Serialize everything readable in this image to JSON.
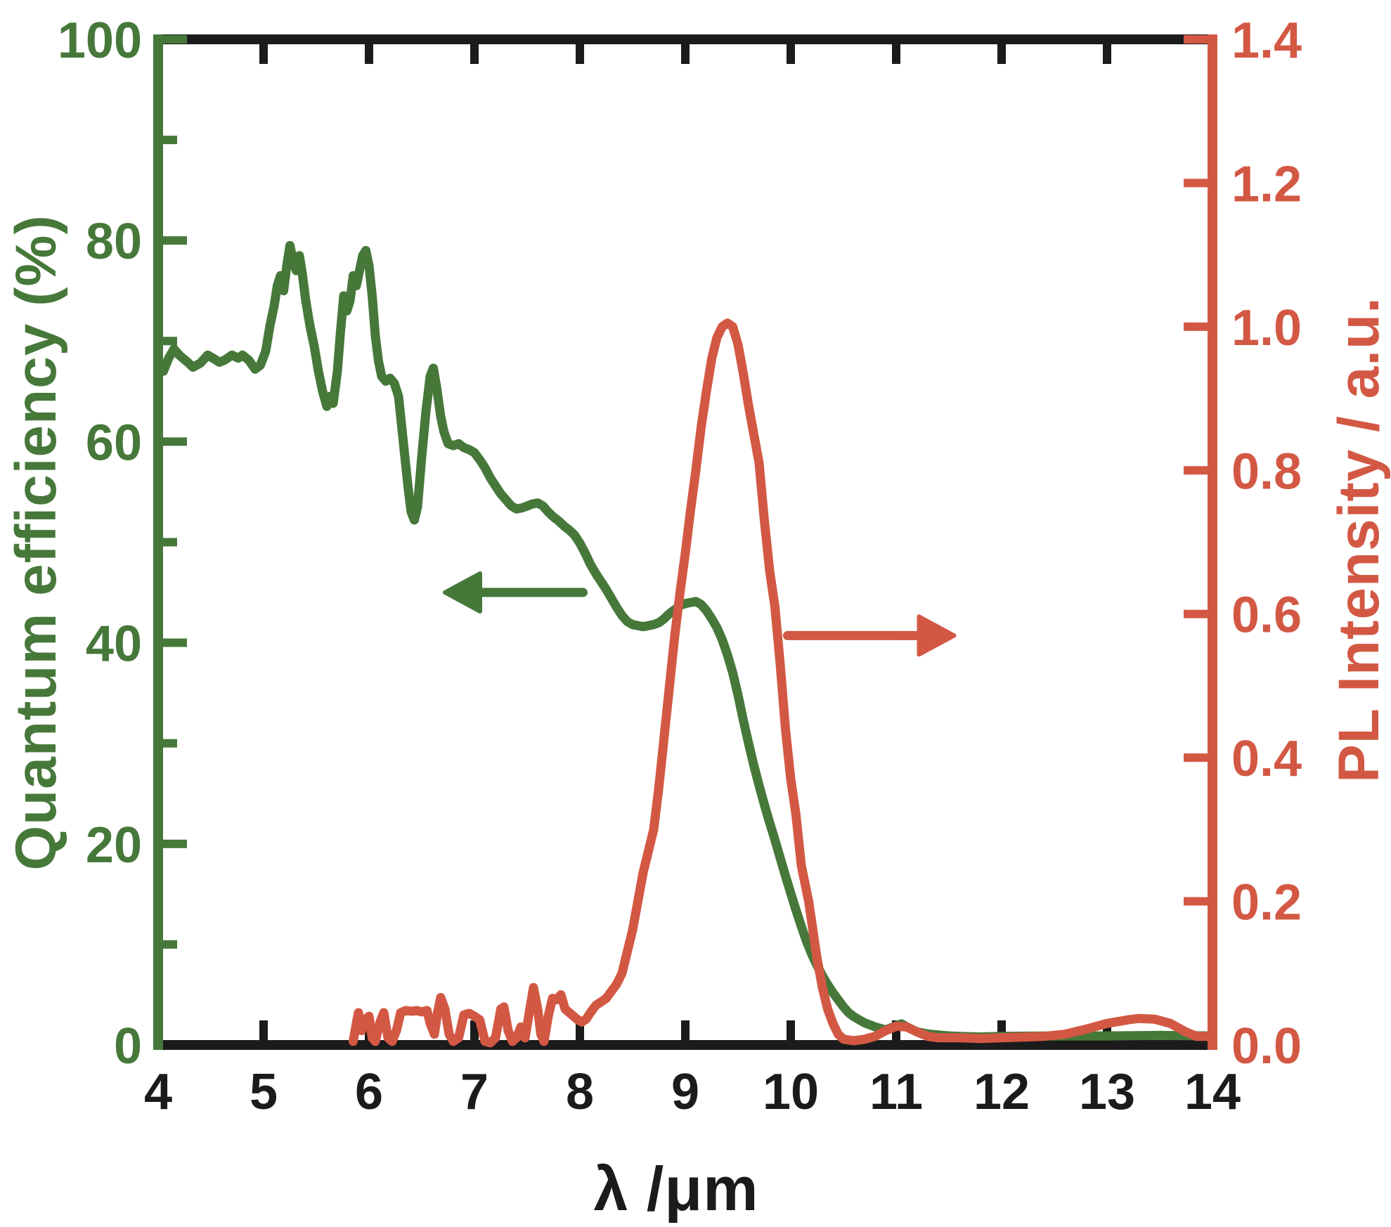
{
  "figure": {
    "background_hex": "#ffffff",
    "frame_color_hex": "#1b1b1b",
    "xlabel": "λ /μm",
    "x_axis": {
      "min": 4,
      "max": 14,
      "tick_values": [
        4,
        5,
        6,
        7,
        8,
        9,
        10,
        11,
        12,
        13,
        14
      ],
      "tick_labels": [
        "4",
        "5",
        "6",
        "7",
        "8",
        "9",
        "10",
        "11",
        "12",
        "13",
        "14"
      ]
    },
    "left_axis": {
      "label": "Quantum efficiency (%)",
      "color_hex": "#46783a",
      "min": 0,
      "max": 100,
      "tick_values": [
        0,
        20,
        40,
        60,
        80,
        100
      ],
      "tick_labels": [
        "0",
        "20",
        "40",
        "60",
        "80",
        "100"
      ],
      "minor_tick_values": [
        10,
        30,
        50,
        70,
        90
      ]
    },
    "right_axis": {
      "label": "PL Intensity / a.u.",
      "color_hex": "#d35844",
      "min": 0,
      "max": 1.4,
      "tick_values": [
        0,
        0.2,
        0.4,
        0.6,
        0.8,
        1.0,
        1.2,
        1.4
      ],
      "tick_labels": [
        "0.0",
        "0.2",
        "0.4",
        "0.6",
        "0.8",
        "1.0",
        "1.2",
        "1.4"
      ]
    }
  },
  "chart_data": {
    "type": "line",
    "title": "",
    "xlabel": "λ /μm",
    "xlim": [
      4,
      14
    ],
    "left_ylabel": "Quantum efficiency (%)",
    "left_ylim": [
      0,
      100
    ],
    "right_ylabel": "PL Intensity / a.u.",
    "right_ylim": [
      0,
      1.4
    ],
    "grid": false,
    "legend": "none",
    "series": [
      {
        "name": "Quantum efficiency",
        "axis": "left",
        "color_hex": "#46783a",
        "line_width": 13,
        "x": [
          4.0,
          4.05,
          4.1,
          4.15,
          4.2,
          4.28,
          4.33,
          4.4,
          4.47,
          4.52,
          4.58,
          4.63,
          4.7,
          4.76,
          4.8,
          4.86,
          4.92,
          4.97,
          5.02,
          5.06,
          5.1,
          5.13,
          5.16,
          5.19,
          5.22,
          5.25,
          5.28,
          5.31,
          5.34,
          5.37,
          5.4,
          5.44,
          5.48,
          5.52,
          5.56,
          5.6,
          5.63,
          5.66,
          5.7,
          5.73,
          5.76,
          5.79,
          5.82,
          5.85,
          5.88,
          5.91,
          5.94,
          5.97,
          6.0,
          6.03,
          6.06,
          6.09,
          6.12,
          6.16,
          6.2,
          6.24,
          6.28,
          6.31,
          6.34,
          6.37,
          6.4,
          6.43,
          6.46,
          6.5,
          6.54,
          6.58,
          6.61,
          6.64,
          6.68,
          6.71,
          6.75,
          6.8,
          6.85,
          6.9,
          6.95,
          7.0,
          7.05,
          7.1,
          7.15,
          7.2,
          7.25,
          7.3,
          7.35,
          7.4,
          7.45,
          7.5,
          7.55,
          7.6,
          7.65,
          7.7,
          7.75,
          7.8,
          7.85,
          7.9,
          7.95,
          8.0,
          8.05,
          8.1,
          8.15,
          8.2,
          8.25,
          8.3,
          8.35,
          8.4,
          8.45,
          8.5,
          8.55,
          8.6,
          8.65,
          8.7,
          8.75,
          8.8,
          8.85,
          8.9,
          8.95,
          9.0,
          9.05,
          9.1,
          9.15,
          9.2,
          9.25,
          9.3,
          9.35,
          9.4,
          9.45,
          9.5,
          9.55,
          9.6,
          9.65,
          9.7,
          9.75,
          9.8,
          9.85,
          9.9,
          9.95,
          10.0,
          10.05,
          10.1,
          10.15,
          10.2,
          10.25,
          10.3,
          10.35,
          10.4,
          10.45,
          10.5,
          10.55,
          10.6,
          10.7,
          10.8,
          10.9,
          11.0,
          11.05,
          11.1,
          11.2,
          11.3,
          11.4,
          11.5,
          11.6,
          11.8,
          12.0,
          12.5,
          13.0,
          13.5,
          14.0
        ],
        "y": [
          67.2,
          67.0,
          68.3,
          69.2,
          68.6,
          67.9,
          67.4,
          67.8,
          68.6,
          68.3,
          67.9,
          68.1,
          68.6,
          68.3,
          68.6,
          68.1,
          67.2,
          67.6,
          69.0,
          71.5,
          73.5,
          75.5,
          76.5,
          75.0,
          77.5,
          79.5,
          78.0,
          77.0,
          78.5,
          76.5,
          74.0,
          71.5,
          69.5,
          67.0,
          65.0,
          63.5,
          64.5,
          63.8,
          67.0,
          71.0,
          74.5,
          73.0,
          74.0,
          76.5,
          75.5,
          77.0,
          78.5,
          79.0,
          77.5,
          74.5,
          70.5,
          68.0,
          66.5,
          66.0,
          66.3,
          65.8,
          64.5,
          61.5,
          58.5,
          55.5,
          53.0,
          52.2,
          53.5,
          58.5,
          63.0,
          66.5,
          67.3,
          65.5,
          62.5,
          61.0,
          59.8,
          59.6,
          59.8,
          59.4,
          59.2,
          58.9,
          58.2,
          57.4,
          56.4,
          55.6,
          54.8,
          54.2,
          53.6,
          53.3,
          53.4,
          53.6,
          53.8,
          53.9,
          53.6,
          53.0,
          52.5,
          52.1,
          51.6,
          51.2,
          50.7,
          49.9,
          48.9,
          47.8,
          46.9,
          46.1,
          45.3,
          44.4,
          43.5,
          42.7,
          42.1,
          41.8,
          41.7,
          41.6,
          41.7,
          41.8,
          42.0,
          42.4,
          42.9,
          43.3,
          43.7,
          43.9,
          44.0,
          44.1,
          43.8,
          43.2,
          42.4,
          41.5,
          40.3,
          38.8,
          37.0,
          34.8,
          32.3,
          30.0,
          27.8,
          25.8,
          23.9,
          22.1,
          20.4,
          18.6,
          16.8,
          15.1,
          13.4,
          11.8,
          10.3,
          9.0,
          7.9,
          6.9,
          6.0,
          5.2,
          4.5,
          3.8,
          3.2,
          2.8,
          2.2,
          1.8,
          1.5,
          1.9,
          2.1,
          1.8,
          1.3,
          1.1,
          1.0,
          0.9,
          0.85,
          0.8,
          0.85,
          0.9,
          0.9,
          0.95,
          0.9
        ]
      },
      {
        "name": "PL Intensity",
        "axis": "right",
        "color_hex": "#d35844",
        "line_width": 13,
        "x": [
          5.85,
          5.88,
          5.9,
          5.93,
          5.96,
          6.0,
          6.03,
          6.06,
          6.1,
          6.14,
          6.18,
          6.22,
          6.26,
          6.3,
          6.35,
          6.4,
          6.45,
          6.5,
          6.55,
          6.58,
          6.62,
          6.65,
          6.68,
          6.72,
          6.76,
          6.8,
          6.85,
          6.9,
          6.95,
          7.0,
          7.05,
          7.1,
          7.15,
          7.2,
          7.25,
          7.28,
          7.32,
          7.36,
          7.4,
          7.44,
          7.48,
          7.52,
          7.56,
          7.6,
          7.63,
          7.66,
          7.7,
          7.74,
          7.78,
          7.82,
          7.86,
          7.9,
          7.94,
          7.98,
          8.02,
          8.06,
          8.1,
          8.15,
          8.2,
          8.25,
          8.3,
          8.35,
          8.4,
          8.45,
          8.5,
          8.55,
          8.6,
          8.65,
          8.7,
          8.75,
          8.8,
          8.85,
          8.9,
          8.95,
          9.0,
          9.05,
          9.1,
          9.15,
          9.2,
          9.25,
          9.3,
          9.35,
          9.4,
          9.45,
          9.5,
          9.55,
          9.6,
          9.65,
          9.7,
          9.75,
          9.8,
          9.85,
          9.9,
          9.95,
          10.0,
          10.05,
          10.1,
          10.17,
          10.25,
          10.3,
          10.35,
          10.4,
          10.45,
          10.5,
          10.6,
          10.7,
          10.8,
          10.9,
          11.0,
          11.1,
          11.2,
          11.3,
          11.4,
          11.6,
          11.8,
          12.0,
          12.2,
          12.4,
          12.6,
          12.8,
          13.0,
          13.2,
          13.3,
          13.45,
          13.6,
          13.75,
          13.85,
          14.0
        ],
        "y": [
          0.005,
          0.03,
          0.045,
          0.02,
          0.035,
          0.04,
          0.01,
          0.005,
          0.03,
          0.045,
          0.01,
          0.005,
          0.02,
          0.045,
          0.048,
          0.047,
          0.048,
          0.046,
          0.048,
          0.03,
          0.015,
          0.045,
          0.066,
          0.05,
          0.015,
          0.005,
          0.01,
          0.042,
          0.044,
          0.04,
          0.035,
          0.005,
          0.003,
          0.01,
          0.05,
          0.053,
          0.02,
          0.005,
          0.01,
          0.025,
          0.01,
          0.045,
          0.08,
          0.05,
          0.015,
          0.005,
          0.04,
          0.065,
          0.063,
          0.07,
          0.05,
          0.045,
          0.04,
          0.035,
          0.032,
          0.036,
          0.045,
          0.055,
          0.06,
          0.065,
          0.075,
          0.085,
          0.1,
          0.13,
          0.16,
          0.2,
          0.24,
          0.27,
          0.3,
          0.36,
          0.43,
          0.5,
          0.57,
          0.63,
          0.685,
          0.745,
          0.8,
          0.86,
          0.91,
          0.955,
          0.985,
          1.0,
          1.005,
          1.0,
          0.975,
          0.935,
          0.89,
          0.85,
          0.81,
          0.73,
          0.66,
          0.61,
          0.53,
          0.44,
          0.37,
          0.32,
          0.25,
          0.2,
          0.12,
          0.08,
          0.05,
          0.03,
          0.015,
          0.008,
          0.006,
          0.008,
          0.012,
          0.02,
          0.026,
          0.025,
          0.018,
          0.012,
          0.01,
          0.01,
          0.009,
          0.01,
          0.011,
          0.012,
          0.015,
          0.022,
          0.03,
          0.035,
          0.037,
          0.036,
          0.03,
          0.018,
          0.012,
          0.012
        ]
      }
    ],
    "annotations": [
      {
        "name": "quantum-efficiency-arrow",
        "type": "arrow",
        "direction": "left",
        "axis": "left",
        "color_hex": "#46783a",
        "x_tail": 8.03,
        "x_tip": 6.72,
        "y": 45.0
      },
      {
        "name": "pl-intensity-arrow",
        "type": "arrow",
        "direction": "right",
        "axis": "right",
        "color_hex": "#d35844",
        "x_tail": 9.97,
        "x_tip": 11.55,
        "y": 0.57
      }
    ]
  }
}
